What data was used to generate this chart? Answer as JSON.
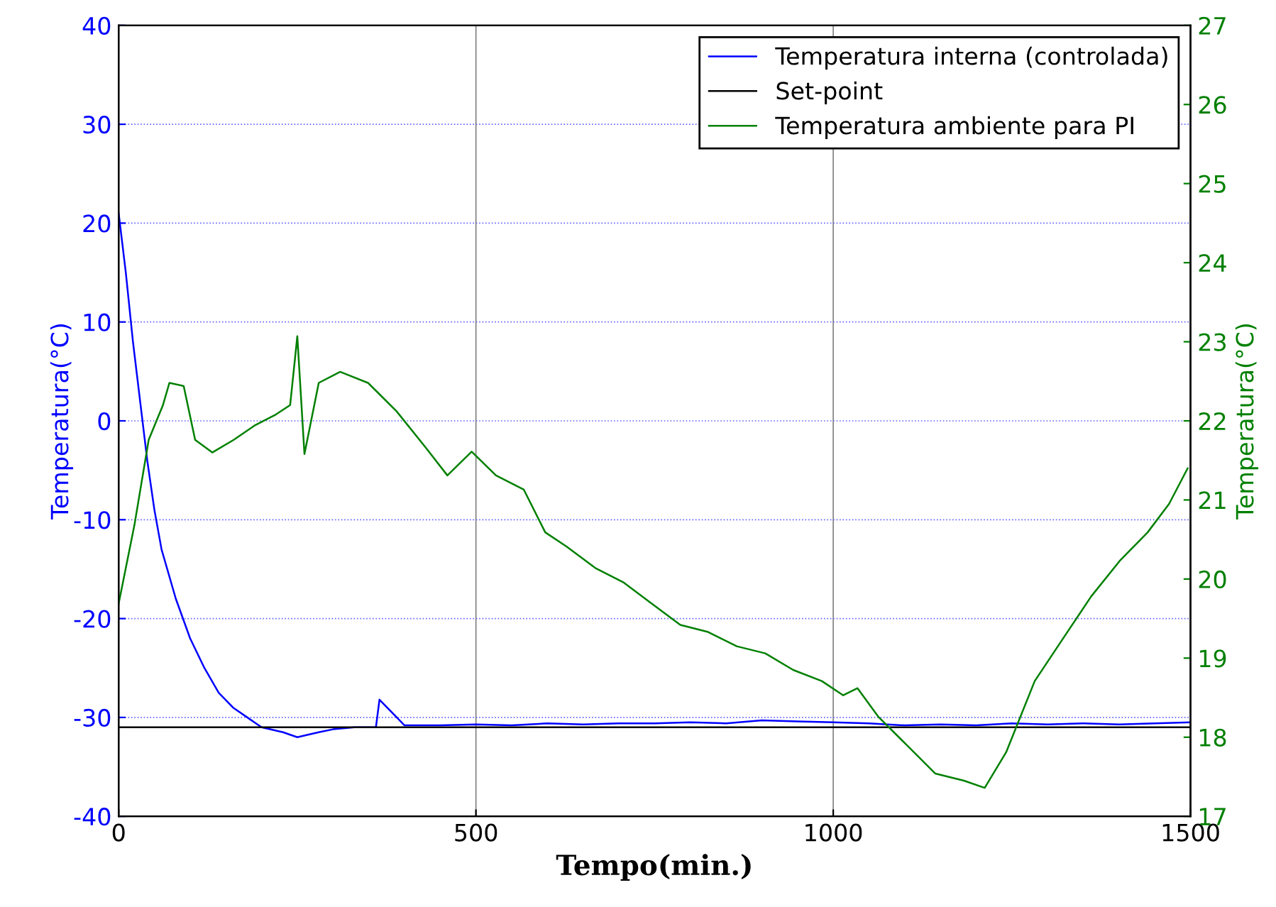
{
  "chart_data": {
    "type": "line",
    "xlabel": "Tempo(min.)",
    "ylabel": "Temperatura(°C)",
    "y2label": "Temperatura(°C)",
    "xlim": [
      0,
      1500
    ],
    "xticks": [
      0,
      500,
      1000,
      1500
    ],
    "ylim": [
      -40,
      40
    ],
    "yticks": [
      -40,
      -30,
      -20,
      -10,
      0,
      10,
      20,
      30,
      40
    ],
    "y2lim": [
      17,
      27
    ],
    "y2ticks": [
      17,
      18,
      19,
      20,
      21,
      22,
      23,
      24,
      25,
      26,
      27
    ],
    "grid": true,
    "legend": "top right",
    "series": [
      {
        "name": "Temperatura interna (controlada)",
        "color": "#0000ff",
        "x": [
          0,
          10,
          20,
          30,
          40,
          50,
          60,
          80,
          100,
          120,
          140,
          160,
          180,
          200,
          230,
          250,
          280,
          300,
          330,
          360,
          365,
          400,
          450,
          500,
          550,
          600,
          650,
          700,
          750,
          800,
          850,
          900,
          950,
          1000,
          1050,
          1100,
          1150,
          1200,
          1250,
          1300,
          1350,
          1400,
          1450,
          1500
        ],
        "values": [
          21,
          15,
          8,
          2,
          -4,
          -9,
          -13,
          -18,
          -22,
          -25,
          -27.5,
          -29,
          -30,
          -31,
          -31.5,
          -32,
          -31.5,
          -31.2,
          -31,
          -31,
          -28.2,
          -30.8,
          -30.8,
          -30.7,
          -30.8,
          -30.6,
          -30.7,
          -30.6,
          -30.6,
          -30.5,
          -30.6,
          -30.3,
          -30.4,
          -30.5,
          -30.6,
          -30.8,
          -30.7,
          -30.8,
          -30.6,
          -30.7,
          -30.6,
          -30.7,
          -30.6,
          -30.5
        ]
      },
      {
        "name": "Set-point",
        "color": "#000000",
        "x": [
          0,
          1500
        ],
        "values": [
          -31,
          -31
        ]
      },
      {
        "name": "Temperatura ambiente para PI",
        "color": "#008000",
        "axis": "y2",
        "x": [
          0,
          22,
          42,
          62,
          71,
          91,
          107,
          131,
          161,
          190,
          220,
          240,
          250,
          260,
          280,
          310,
          349,
          389,
          429,
          460,
          494,
          528,
          567,
          597,
          627,
          667,
          706,
          746,
          786,
          825,
          865,
          905,
          944,
          984,
          1014,
          1034,
          1063,
          1103,
          1143,
          1183,
          1212,
          1242,
          1282,
          1321,
          1361,
          1401,
          1440,
          1470,
          1496
        ],
        "values": [
          19.69,
          20.68,
          21.76,
          22.2,
          22.48,
          22.44,
          21.76,
          21.6,
          21.76,
          21.94,
          22.08,
          22.2,
          23.07,
          21.58,
          22.48,
          22.62,
          22.48,
          22.12,
          21.67,
          21.31,
          21.61,
          21.31,
          21.13,
          20.59,
          20.41,
          20.14,
          19.96,
          19.69,
          19.42,
          19.33,
          19.15,
          19.06,
          18.85,
          18.71,
          18.53,
          18.62,
          18.26,
          17.9,
          17.54,
          17.45,
          17.36,
          17.81,
          18.71,
          19.24,
          19.78,
          20.23,
          20.59,
          20.95,
          21.4
        ]
      }
    ]
  }
}
